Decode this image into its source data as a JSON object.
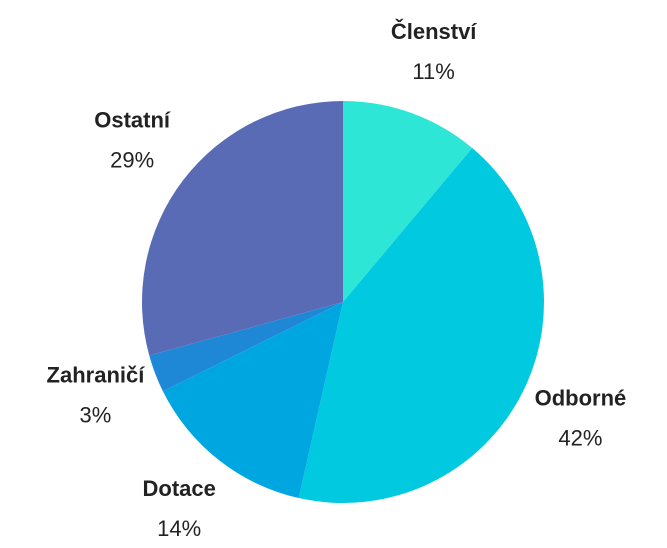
{
  "chart_data": {
    "type": "pie",
    "categories": [
      "Členství",
      "Odborné",
      "Dotace",
      "Zahraničí",
      "Ostatní"
    ],
    "values": [
      11,
      42,
      14,
      3,
      29
    ],
    "value_labels": [
      "11%",
      "42%",
      "14%",
      "3%",
      "29%"
    ],
    "colors": [
      "#2ee6d6",
      "#00c9e0",
      "#00a6e0",
      "#1f88d6",
      "#5a6bb5"
    ]
  }
}
